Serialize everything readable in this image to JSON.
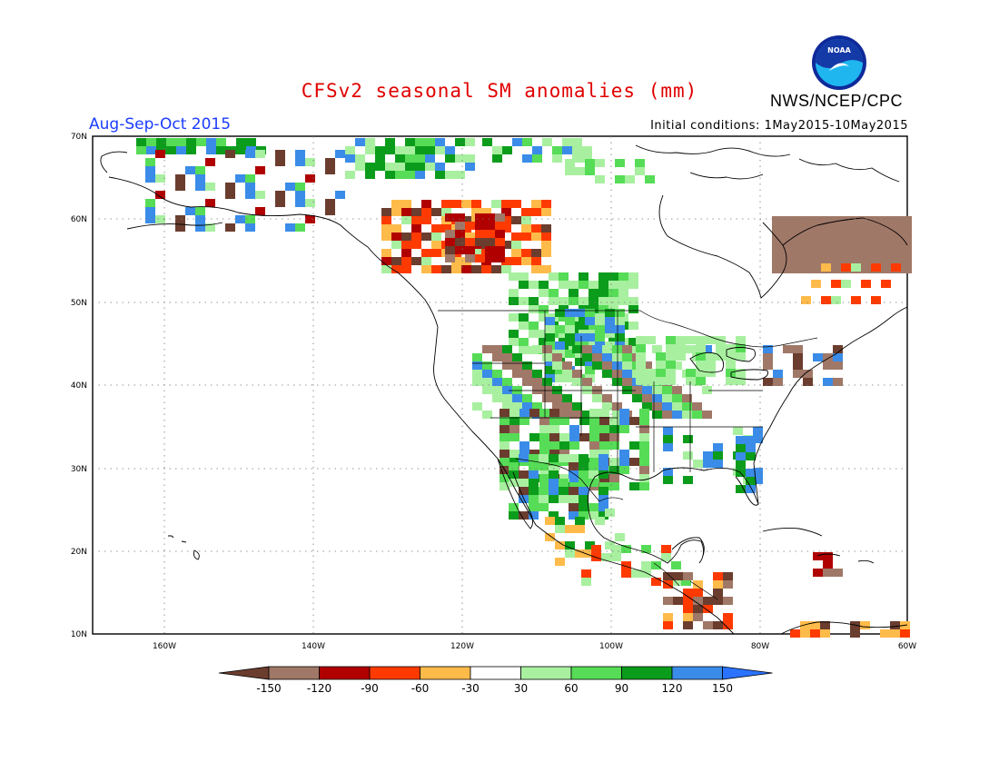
{
  "header": {
    "title": "CFSv2 seasonal SM anomalies (mm)",
    "season": "Aug-Sep-Oct 2015",
    "initial_conditions": "Initial conditions: 1May2015-10May2015",
    "agency": "NWS/NCEP/CPC",
    "logo_text": "NOAA"
  },
  "map": {
    "lat_labels": [
      "70N",
      "60N",
      "50N",
      "40N",
      "30N",
      "20N",
      "10N"
    ],
    "lon_labels": [
      "160W",
      "140W",
      "120W",
      "100W",
      "80W",
      "60W"
    ],
    "region": "North America",
    "ocean_color": "#ffffff"
  },
  "colorbar": {
    "labels": [
      "-150",
      "-120",
      "-90",
      "-60",
      "-30",
      "30",
      "60",
      "90",
      "120",
      "150"
    ],
    "colors": [
      "#6b3d2e",
      "#a07868",
      "#b00000",
      "#ff3a00",
      "#ffbb4a",
      "#ffffff",
      "#a8f0a0",
      "#56dc56",
      "#0c9c1c",
      "#3a8ce8",
      "#2a72ff"
    ]
  }
}
